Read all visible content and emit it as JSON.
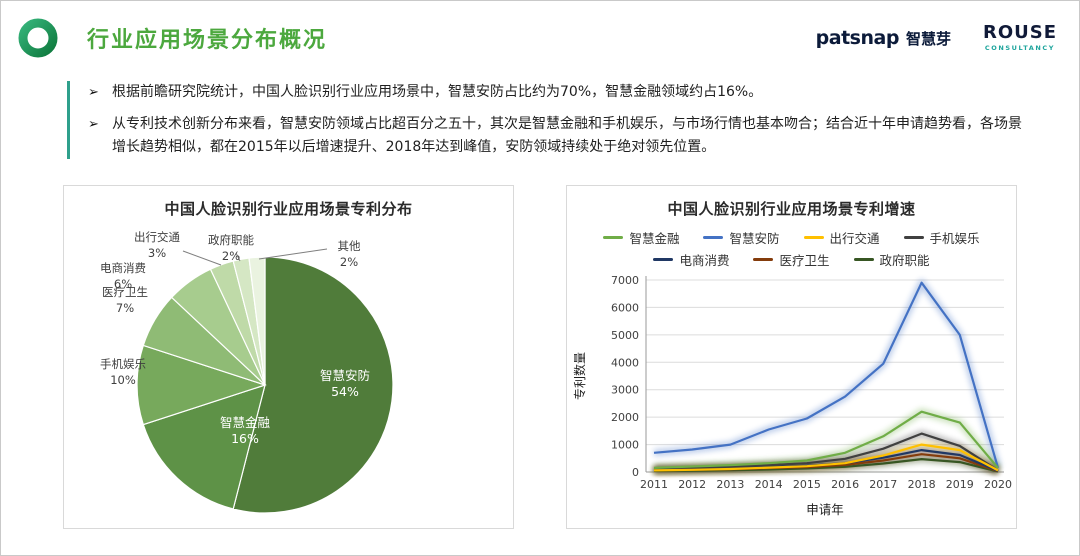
{
  "header": {
    "title": "行业应用场景分布概况",
    "patsnap_logo": "patsnap",
    "patsnap_cn": "智慧芽",
    "rouse_logo": "ROUSE",
    "rouse_sub": "CONSULTANCY",
    "accent_green": "#4ca83e",
    "accent_teal": "#2fa08c"
  },
  "bullets": [
    "根据前瞻研究院统计，中国人脸识别行业应用场景中，智慧安防占比约为70%，智慧金融领域约占16%。",
    "从专利技术创新分布来看，智慧安防领域占比超百分之五十，其次是智慧金融和手机娱乐，与市场行情也基本吻合；结合近十年申请趋势看，各场景增长趋势相似，都在2015年以后增速提升、2018年达到峰值，安防领域持续处于绝对领先位置。"
  ],
  "chart_data": [
    {
      "type": "pie",
      "title": "中国人脸识别行业应用场景专利分布",
      "labels": [
        "智慧安防",
        "智慧金融",
        "手机娱乐",
        "医疗卫生",
        "电商消费",
        "出行交通",
        "政府职能",
        "其他"
      ],
      "values": [
        54,
        16,
        10,
        7,
        6,
        3,
        2,
        2
      ],
      "colors": [
        "#507c3a",
        "#5e9247",
        "#77a95c",
        "#8fbb75",
        "#a7cc8e",
        "#bfdaa8",
        "#d5e7c4",
        "#eaf3e0"
      ],
      "legend_position": "none"
    },
    {
      "type": "line",
      "title": "中国人脸识别行业应用场景专利增速",
      "xlabel": "申请年",
      "ylabel": "专利数量",
      "ylim": [
        0,
        7000
      ],
      "grid": true,
      "legend_position": "top",
      "x": [
        2011,
        2012,
        2013,
        2014,
        2015,
        2016,
        2017,
        2018,
        2019,
        2020
      ],
      "series": [
        {
          "name": "智慧金融",
          "color": "#70ad47",
          "values": [
            150,
            200,
            250,
            320,
            420,
            700,
            1300,
            2200,
            1800,
            150
          ]
        },
        {
          "name": "智慧安防",
          "color": "#4472c4",
          "values": [
            700,
            820,
            1000,
            1550,
            1950,
            2750,
            3950,
            6900,
            5000,
            150
          ]
        },
        {
          "name": "出行交通",
          "color": "#ffc000",
          "values": [
            60,
            80,
            110,
            160,
            210,
            320,
            600,
            1000,
            800,
            60
          ]
        },
        {
          "name": "手机娱乐",
          "color": "#404040",
          "values": [
            100,
            130,
            180,
            250,
            320,
            480,
            850,
            1400,
            950,
            60
          ]
        },
        {
          "name": "电商消费",
          "color": "#203864",
          "values": [
            80,
            100,
            140,
            180,
            230,
            320,
            520,
            800,
            620,
            40
          ]
        },
        {
          "name": "医疗卫生",
          "color": "#843c0c",
          "values": [
            60,
            80,
            100,
            140,
            180,
            260,
            420,
            650,
            500,
            30
          ]
        },
        {
          "name": "政府职能",
          "color": "#375623",
          "values": [
            40,
            50,
            70,
            90,
            130,
            190,
            310,
            470,
            360,
            20
          ]
        }
      ],
      "legend_rows": [
        4,
        3
      ]
    }
  ]
}
